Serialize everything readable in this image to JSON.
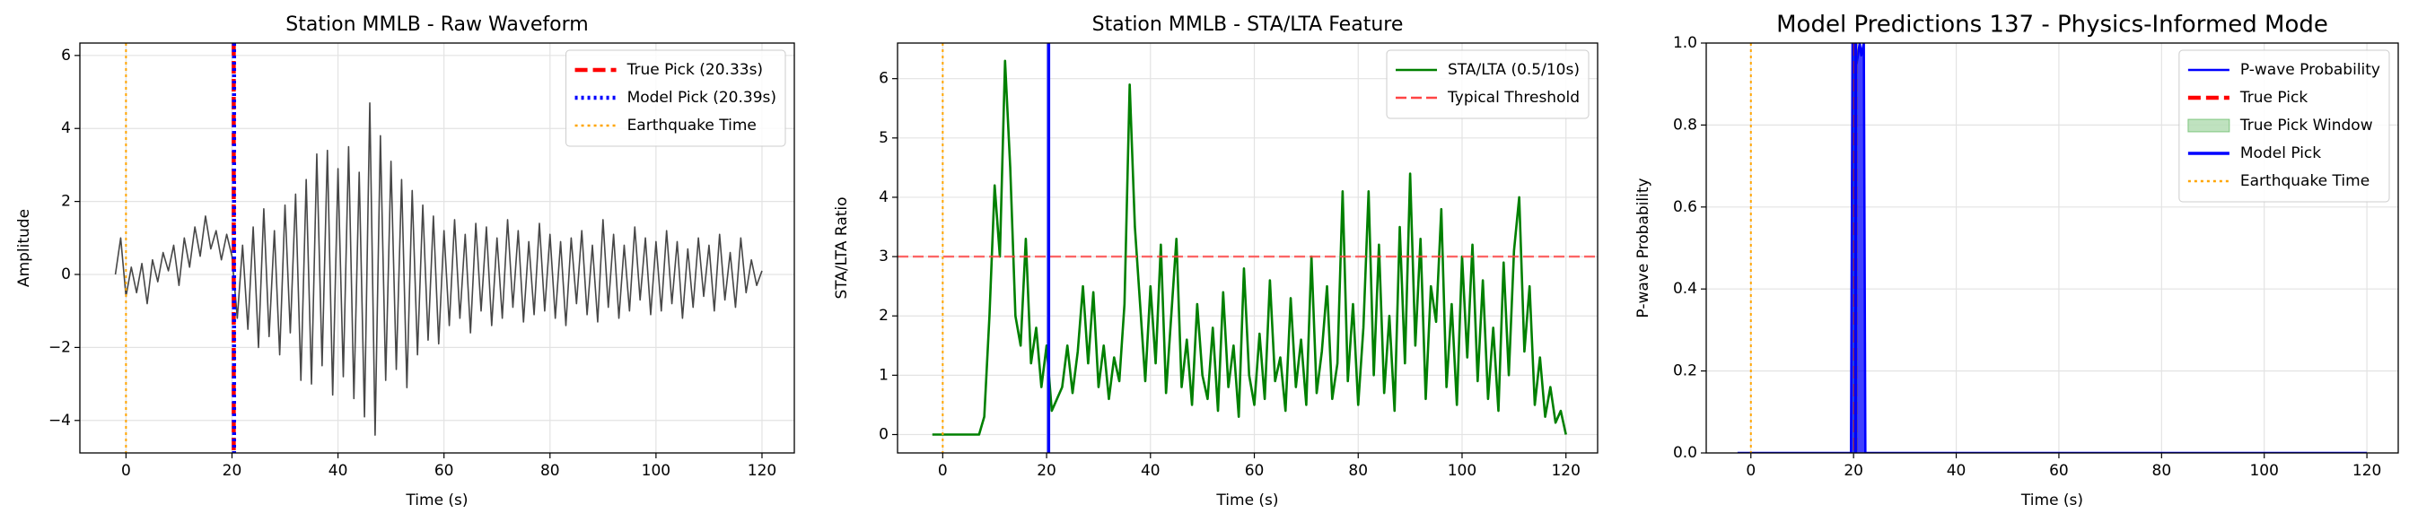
{
  "chart_data": [
    {
      "type": "line",
      "title": "Station MMLB - Raw Waveform",
      "xlabel": "Time (s)",
      "ylabel": "Amplitude",
      "xlim": [
        -8.7,
        126.1
      ],
      "ylim": [
        -4.89,
        6.34
      ],
      "xticks": [
        0,
        20,
        40,
        60,
        80,
        100,
        120
      ],
      "yticks": [
        {
          "value": -4,
          "label": "−4"
        },
        {
          "value": -2,
          "label": "−2"
        },
        0,
        2,
        4,
        6
      ],
      "grid": true,
      "legend": "upper right",
      "series": [
        {
          "kind": "series",
          "color": "#333333",
          "style": "solid",
          "x": [
            -2,
            -1,
            0,
            1,
            2,
            3,
            4,
            5,
            6,
            7,
            8,
            9,
            10,
            11,
            12,
            13,
            14,
            15,
            16,
            17,
            18,
            19,
            20,
            21,
            22,
            23,
            24,
            25,
            26,
            27,
            28,
            29,
            30,
            31,
            32,
            33,
            34,
            35,
            36,
            37,
            38,
            39,
            40,
            41,
            42,
            43,
            44,
            45,
            46,
            47,
            48,
            49,
            50,
            51,
            52,
            53,
            54,
            55,
            56,
            57,
            58,
            59,
            60,
            61,
            62,
            63,
            64,
            65,
            66,
            67,
            68,
            69,
            70,
            71,
            72,
            73,
            74,
            75,
            76,
            77,
            78,
            79,
            80,
            81,
            82,
            83,
            84,
            85,
            86,
            87,
            88,
            89,
            90,
            91,
            92,
            93,
            94,
            95,
            96,
            97,
            98,
            99,
            100,
            101,
            102,
            103,
            104,
            105,
            106,
            107,
            108,
            109,
            110,
            111,
            112,
            113,
            114,
            115,
            116,
            117,
            118,
            119,
            120
          ],
          "values": [
            0,
            1.0,
            -0.6,
            0.2,
            -0.5,
            0.3,
            -0.8,
            0.4,
            -0.2,
            0.6,
            0.1,
            0.8,
            -0.3,
            1.0,
            0.2,
            1.3,
            0.5,
            1.6,
            0.7,
            1.2,
            0.4,
            1.1,
            0.5,
            -1.2,
            0.8,
            -1.5,
            1.3,
            -2.0,
            1.8,
            -1.7,
            1.2,
            -2.2,
            1.9,
            -1.6,
            2.2,
            -2.9,
            2.6,
            -3.0,
            3.3,
            -2.5,
            3.4,
            -3.3,
            2.9,
            -2.8,
            3.5,
            -3.4,
            2.8,
            -3.9,
            4.7,
            -4.4,
            3.8,
            -2.9,
            3.1,
            -2.6,
            2.6,
            -3.1,
            2.3,
            -2.2,
            1.9,
            -1.8,
            1.6,
            -1.9,
            1.2,
            -1.4,
            1.5,
            -1.2,
            1.1,
            -1.6,
            1.4,
            -1.0,
            1.3,
            -1.4,
            1.0,
            -1.2,
            1.5,
            -0.9,
            1.2,
            -1.3,
            0.9,
            -1.1,
            1.4,
            -1.0,
            1.1,
            -1.2,
            0.9,
            -1.4,
            1.0,
            -0.8,
            1.2,
            -1.1,
            0.8,
            -1.3,
            1.5,
            -0.9,
            1.1,
            -1.2,
            0.8,
            -1.0,
            1.3,
            -0.7,
            1.0,
            -1.1,
            0.9,
            -1.0,
            1.2,
            -0.8,
            0.9,
            -1.2,
            0.7,
            -0.9,
            1.0,
            -0.6,
            0.8,
            -1.0,
            1.1,
            -0.7,
            0.6,
            -0.9,
            1.0,
            -0.5,
            0.4,
            -0.3,
            0.1
          ]
        },
        {
          "kind": "vline",
          "name": "True Pick (20.33s)",
          "x": 20.33,
          "color": "#ff0000",
          "style": "dashed"
        },
        {
          "kind": "vline",
          "name": "Model Pick (20.39s)",
          "x": 20.39,
          "color": "#0000ff",
          "style": "dotted"
        },
        {
          "kind": "vline",
          "name": "Earthquake Time",
          "x": 0,
          "color": "#ffa500",
          "style": "dotted"
        }
      ]
    },
    {
      "type": "line",
      "title": "Station MMLB - STA/LTA Feature",
      "xlabel": "Time (s)",
      "ylabel": "STA/LTA Ratio",
      "xlim": [
        -8.7,
        126.1
      ],
      "ylim": [
        -0.31,
        6.6
      ],
      "xticks": [
        0,
        20,
        40,
        60,
        80,
        100,
        120
      ],
      "yticks": [
        0,
        1,
        2,
        3,
        4,
        5,
        6
      ],
      "grid": true,
      "legend": "upper right",
      "series": [
        {
          "kind": "series",
          "name": "STA/LTA (0.5/10s)",
          "color": "#008000",
          "style": "solid",
          "x": [
            -2,
            -1,
            0,
            1,
            2,
            3,
            4,
            5,
            6,
            7,
            8,
            9,
            10,
            11,
            12,
            13,
            14,
            15,
            16,
            17,
            18,
            19,
            20,
            21,
            22,
            23,
            24,
            25,
            26,
            27,
            28,
            29,
            30,
            31,
            32,
            33,
            34,
            35,
            36,
            37,
            38,
            39,
            40,
            41,
            42,
            43,
            44,
            45,
            46,
            47,
            48,
            49,
            50,
            51,
            52,
            53,
            54,
            55,
            56,
            57,
            58,
            59,
            60,
            61,
            62,
            63,
            64,
            65,
            66,
            67,
            68,
            69,
            70,
            71,
            72,
            73,
            74,
            75,
            76,
            77,
            78,
            79,
            80,
            81,
            82,
            83,
            84,
            85,
            86,
            87,
            88,
            89,
            90,
            91,
            92,
            93,
            94,
            95,
            96,
            97,
            98,
            99,
            100,
            101,
            102,
            103,
            104,
            105,
            106,
            107,
            108,
            109,
            110,
            111,
            112,
            113,
            114,
            115,
            116,
            117,
            118,
            119,
            120
          ],
          "values": [
            0,
            0,
            0,
            0,
            0,
            0,
            0,
            0,
            0,
            0,
            0.3,
            2.0,
            4.2,
            3.0,
            6.3,
            4.5,
            2.0,
            1.5,
            3.3,
            1.2,
            1.8,
            0.8,
            1.5,
            0.4,
            0.6,
            0.8,
            1.5,
            0.7,
            1.4,
            2.5,
            1.2,
            2.4,
            0.8,
            1.5,
            0.6,
            1.3,
            0.9,
            2.2,
            5.9,
            3.5,
            2.2,
            0.9,
            2.5,
            1.2,
            3.2,
            0.7,
            2.0,
            3.3,
            0.8,
            1.6,
            0.5,
            2.2,
            1.0,
            0.6,
            1.8,
            0.4,
            2.4,
            0.8,
            1.5,
            0.3,
            2.8,
            1.0,
            0.5,
            1.7,
            0.6,
            2.6,
            0.9,
            1.3,
            0.4,
            2.3,
            0.8,
            1.6,
            0.5,
            3.0,
            0.7,
            1.4,
            2.5,
            0.6,
            1.2,
            4.1,
            0.9,
            2.2,
            0.5,
            1.8,
            4.1,
            1.0,
            3.2,
            0.7,
            2.0,
            0.4,
            3.5,
            1.2,
            4.4,
            1.5,
            3.3,
            0.6,
            2.5,
            1.9,
            3.8,
            0.8,
            2.2,
            0.5,
            3.0,
            1.3,
            3.2,
            0.9,
            2.6,
            0.6,
            1.8,
            0.4,
            2.9,
            1.0,
            3.1,
            4.0,
            1.4,
            2.5,
            0.5,
            1.3,
            0.3,
            0.8,
            0.2,
            0.4,
            0.0
          ]
        },
        {
          "kind": "hline",
          "name": "Typical Threshold",
          "y": 3,
          "color": "#ff4444",
          "style": "dashed"
        },
        {
          "kind": "vline",
          "x": 20.39,
          "color": "#0000ff",
          "style": "solid"
        },
        {
          "kind": "vline",
          "x": 0,
          "color": "#ffa500",
          "style": "dotted"
        }
      ]
    },
    {
      "type": "line",
      "title": "Model Predictions 137 - Physics-Informed Mode",
      "xlabel": "Time (s)",
      "ylabel": "P-wave Probability",
      "xlim": [
        -8.7,
        126.1
      ],
      "ylim": [
        0,
        1
      ],
      "xticks": [
        0,
        20,
        40,
        60,
        80,
        100,
        120
      ],
      "yticks": [
        {
          "value": 0,
          "label": "0.0"
        },
        {
          "value": 0.2,
          "label": "0.2"
        },
        {
          "value": 0.4,
          "label": "0.4"
        },
        {
          "value": 0.6,
          "label": "0.6"
        },
        {
          "value": 0.8,
          "label": "0.8"
        },
        {
          "value": 1,
          "label": "1.0"
        }
      ],
      "grid": true,
      "legend": "upper right",
      "series": [
        {
          "kind": "series",
          "name": "P-wave Probability",
          "color": "#0000ff",
          "style": "solid",
          "fill": true,
          "x": [
            -2.6,
            19.5,
            19.8,
            20.3,
            20.6,
            21.2,
            21.5,
            22.0,
            22.3,
            120
          ],
          "values": [
            0,
            0,
            1,
            1,
            0.95,
            1,
            0.97,
            1,
            0,
            0
          ]
        },
        {
          "kind": "vline",
          "name": "True Pick",
          "x": 20.33,
          "color": "#ff0000",
          "style": "dashed"
        },
        {
          "kind": "span",
          "name": "True Pick Window",
          "x": [
            19.83,
            20.83
          ],
          "color": "#2ca02c"
        },
        {
          "kind": "vline",
          "name": "Model Pick",
          "x": 20.39,
          "color": "#0000ff",
          "style": "solid"
        },
        {
          "kind": "vline",
          "name": "Earthquake Time",
          "x": 0,
          "color": "#ffa500",
          "style": "dotted"
        }
      ]
    }
  ]
}
